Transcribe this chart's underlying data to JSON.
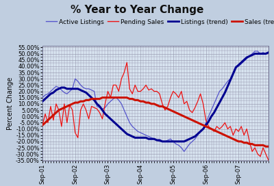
{
  "title": "% Year to Year Change",
  "ylabel": "Percent Change",
  "background_color": "#c0cee0",
  "plot_bg_color": "#d8e4f0",
  "grid_color": "#9090a8",
  "xlim": [
    0,
    83
  ],
  "ylim": [
    -0.355,
    0.565
  ],
  "yticks": [
    -0.35,
    -0.3,
    -0.25,
    -0.2,
    -0.15,
    -0.1,
    -0.05,
    0.0,
    0.05,
    0.1,
    0.15,
    0.2,
    0.25,
    0.3,
    0.35,
    0.4,
    0.45,
    0.5,
    0.55
  ],
  "xtick_labels": [
    "Sep-01",
    "Sep-02",
    "Sep-03",
    "Sep-04",
    "Sep-05",
    "Sep-06",
    "Sep-07"
  ],
  "xtick_positions": [
    0,
    12,
    24,
    36,
    48,
    60,
    72
  ],
  "active_listings": [
    0.15,
    0.17,
    0.18,
    0.2,
    0.22,
    0.24,
    0.23,
    0.21,
    0.19,
    0.18,
    0.2,
    0.22,
    0.3,
    0.28,
    0.25,
    0.23,
    0.22,
    0.22,
    0.21,
    0.2,
    0.08,
    0.07,
    0.06,
    0.07,
    0.1,
    0.12,
    0.14,
    0.15,
    0.13,
    0.1,
    0.05,
    0.0,
    -0.05,
    -0.08,
    -0.1,
    -0.12,
    -0.13,
    -0.14,
    -0.15,
    -0.16,
    -0.17,
    -0.18,
    -0.19,
    -0.2,
    -0.2,
    -0.2,
    -0.19,
    -0.18,
    -0.2,
    -0.22,
    -0.23,
    -0.25,
    -0.28,
    -0.25,
    -0.22,
    -0.2,
    -0.18,
    -0.15,
    -0.12,
    -0.1,
    -0.05,
    0.0,
    0.05,
    0.1,
    0.15,
    0.2,
    0.22,
    0.25,
    0.28,
    0.3,
    0.35,
    0.4,
    0.4,
    0.42,
    0.44,
    0.46,
    0.48,
    0.5,
    0.52,
    0.52,
    0.5,
    0.51,
    0.5,
    0.51
  ],
  "pending_sales": [
    -0.07,
    0.02,
    -0.05,
    0.08,
    -0.03,
    0.1,
    0.05,
    -0.08,
    0.1,
    -0.05,
    0.09,
    0.05,
    -0.13,
    -0.17,
    0.05,
    0.1,
    0.05,
    -0.02,
    0.08,
    0.07,
    0.06,
    0.03,
    -0.02,
    0.1,
    0.2,
    0.15,
    0.25,
    0.25,
    0.2,
    0.3,
    0.35,
    0.43,
    0.22,
    0.18,
    0.25,
    0.2,
    0.2,
    0.22,
    0.25,
    0.21,
    0.22,
    0.2,
    0.2,
    0.18,
    0.1,
    0.05,
    0.08,
    0.15,
    0.2,
    0.18,
    0.15,
    0.2,
    0.1,
    0.12,
    0.05,
    0.03,
    0.07,
    0.12,
    0.18,
    0.1,
    -0.03,
    -0.08,
    -0.1,
    -0.12,
    -0.08,
    -0.1,
    -0.08,
    -0.05,
    -0.1,
    -0.08,
    -0.15,
    -0.1,
    -0.12,
    -0.08,
    -0.15,
    -0.1,
    -0.2,
    -0.28,
    -0.25,
    -0.3,
    -0.32,
    -0.25,
    -0.3,
    -0.35
  ],
  "listings_trend": [
    0.12,
    0.14,
    0.16,
    0.18,
    0.19,
    0.21,
    0.22,
    0.23,
    0.23,
    0.22,
    0.22,
    0.22,
    0.22,
    0.22,
    0.21,
    0.2,
    0.19,
    0.17,
    0.15,
    0.13,
    0.1,
    0.08,
    0.05,
    0.02,
    0.0,
    -0.02,
    -0.04,
    -0.06,
    -0.08,
    -0.1,
    -0.12,
    -0.14,
    -0.15,
    -0.16,
    -0.17,
    -0.17,
    -0.17,
    -0.17,
    -0.17,
    -0.18,
    -0.18,
    -0.18,
    -0.19,
    -0.19,
    -0.2,
    -0.2,
    -0.2,
    -0.2,
    -0.2,
    -0.2,
    -0.2,
    -0.2,
    -0.2,
    -0.19,
    -0.18,
    -0.17,
    -0.16,
    -0.14,
    -0.12,
    -0.1,
    -0.07,
    -0.04,
    0.0,
    0.03,
    0.07,
    0.11,
    0.15,
    0.19,
    0.24,
    0.29,
    0.34,
    0.39,
    0.41,
    0.43,
    0.45,
    0.47,
    0.48,
    0.49,
    0.5,
    0.5,
    0.5,
    0.5,
    0.5,
    0.51
  ],
  "sales_trend": [
    -0.07,
    -0.05,
    -0.03,
    -0.01,
    0.01,
    0.03,
    0.05,
    0.06,
    0.07,
    0.08,
    0.09,
    0.1,
    0.11,
    0.11,
    0.12,
    0.12,
    0.13,
    0.13,
    0.14,
    0.14,
    0.14,
    0.14,
    0.15,
    0.15,
    0.15,
    0.15,
    0.15,
    0.15,
    0.15,
    0.15,
    0.15,
    0.15,
    0.14,
    0.14,
    0.13,
    0.13,
    0.12,
    0.12,
    0.11,
    0.11,
    0.1,
    0.1,
    0.09,
    0.08,
    0.08,
    0.07,
    0.06,
    0.05,
    0.04,
    0.03,
    0.02,
    0.01,
    0.0,
    -0.01,
    -0.02,
    -0.03,
    -0.04,
    -0.05,
    -0.06,
    -0.07,
    -0.08,
    -0.09,
    -0.1,
    -0.11,
    -0.12,
    -0.13,
    -0.14,
    -0.15,
    -0.16,
    -0.17,
    -0.18,
    -0.19,
    -0.2,
    -0.2,
    -0.21,
    -0.21,
    -0.22,
    -0.22,
    -0.23,
    -0.23,
    -0.23,
    -0.23,
    -0.24,
    -0.24
  ],
  "active_color": "#5555cc",
  "pending_color": "#ee1111",
  "listings_trend_color": "#000090",
  "sales_trend_color": "#cc1100",
  "title_fontsize": 11,
  "legend_fontsize": 6.5,
  "tick_fontsize": 6,
  "ylabel_fontsize": 7
}
